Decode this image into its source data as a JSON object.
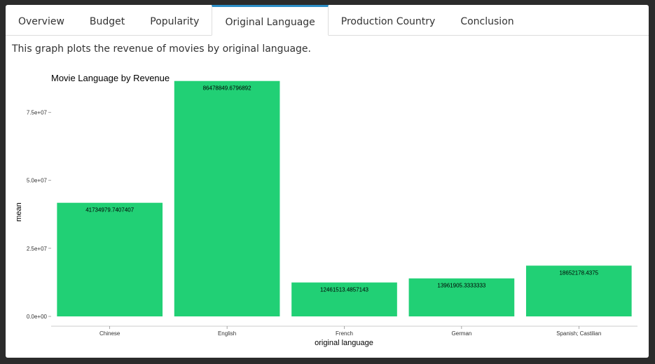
{
  "tabs": [
    "Overview",
    "Budget",
    "Popularity",
    "Original Language",
    "Production Country",
    "Conclusion"
  ],
  "active_tab": 3,
  "description": "This graph plots the revenue of movies by original language.",
  "colors": {
    "bar": "#21D075",
    "active_tab_accent": "#2C8EC7"
  },
  "chart_data": {
    "type": "bar",
    "title": "Movie Language by Revenue",
    "xlabel": "original language",
    "ylabel": "mean",
    "categories": [
      "Chinese",
      "English",
      "French",
      "German",
      "Spanish; Castilian"
    ],
    "values": [
      41734979.7407407,
      86478849.6796892,
      12461513.4857143,
      13961905.3333333,
      18652178.4375
    ],
    "data_labels": [
      "41734979.7407407",
      "86478849.6796892",
      "12461513.4857143",
      "13961905.3333333",
      "18652178.4375"
    ],
    "y_ticks": [
      0,
      25000000,
      50000000,
      75000000
    ],
    "y_tick_labels": [
      "0.0e+00",
      "2.5e+07",
      "5.0e+07",
      "7.5e+07"
    ],
    "ylim": [
      0,
      90000000
    ],
    "grid": false,
    "legend": "none"
  }
}
